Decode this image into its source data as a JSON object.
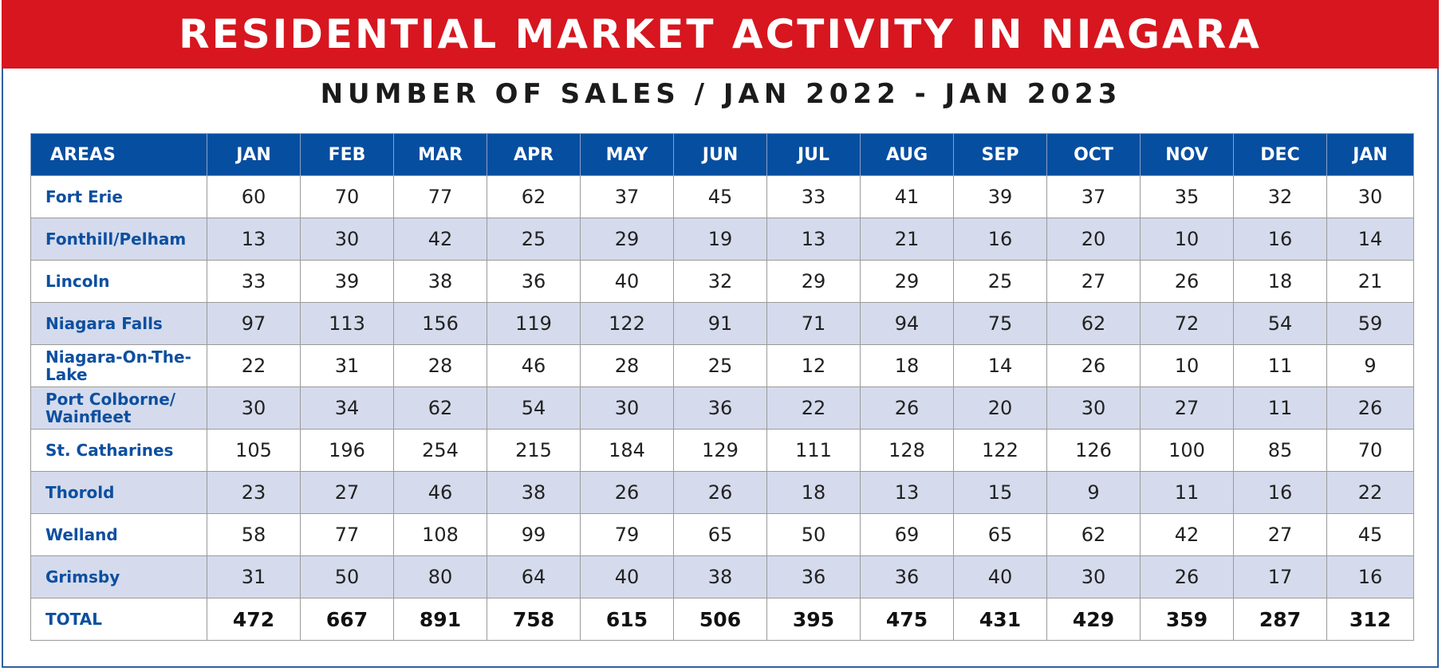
{
  "banner": {
    "title": "RESIDENTIAL MARKET ACTIVITY IN NIAGARA"
  },
  "subtitle": "NUMBER OF SALES / JAN 2022 - JAN 2023",
  "colors": {
    "banner_red": "#d7161f",
    "header_blue": "#064ea0",
    "area_text_blue": "#0d4fa0",
    "row_shade": "#d5dbec"
  },
  "table": {
    "area_header": "AREAS",
    "months": [
      "JAN",
      "FEB",
      "MAR",
      "APR",
      "MAY",
      "JUN",
      "JUL",
      "AUG",
      "SEP",
      "OCT",
      "NOV",
      "DEC",
      "JAN"
    ],
    "rows": [
      {
        "area": "Fort Erie",
        "values": [
          "60",
          "70",
          "77",
          "62",
          "37",
          "45",
          "33",
          "41",
          "39",
          "37",
          "35",
          "32",
          "30"
        ]
      },
      {
        "area": "Fonthill/Pelham",
        "values": [
          "13",
          "30",
          "42",
          "25",
          "29",
          "19",
          "13",
          "21",
          "16",
          "20",
          "10",
          "16",
          "14"
        ]
      },
      {
        "area": "Lincoln",
        "values": [
          "33",
          "39",
          "38",
          "36",
          "40",
          "32",
          "29",
          "29",
          "25",
          "27",
          "26",
          "18",
          "21"
        ]
      },
      {
        "area": "Niagara Falls",
        "values": [
          "97",
          "113",
          "156",
          "119",
          "122",
          "91",
          "71",
          "94",
          "75",
          "62",
          "72",
          "54",
          "59"
        ]
      },
      {
        "area": "Niagara-On-The-Lake",
        "values": [
          "22",
          "31",
          "28",
          "46",
          "28",
          "25",
          "12",
          "18",
          "14",
          "26",
          "10",
          "11",
          "9"
        ]
      },
      {
        "area": "Port Colborne/ Wainfleet",
        "values": [
          "30",
          "34",
          "62",
          "54",
          "30",
          "36",
          "22",
          "26",
          "20",
          "30",
          "27",
          "11",
          "26"
        ]
      },
      {
        "area": "St. Catharines",
        "values": [
          "105",
          "196",
          "254",
          "215",
          "184",
          "129",
          "111",
          "128",
          "122",
          "126",
          "100",
          "85",
          "70"
        ]
      },
      {
        "area": "Thorold",
        "values": [
          "23",
          "27",
          "46",
          "38",
          "26",
          "26",
          "18",
          "13",
          "15",
          "9",
          "11",
          "16",
          "22"
        ]
      },
      {
        "area": "Welland",
        "values": [
          "58",
          "77",
          "108",
          "99",
          "79",
          "65",
          "50",
          "69",
          "65",
          "62",
          "42",
          "27",
          "45"
        ]
      },
      {
        "area": "Grimsby",
        "values": [
          "31",
          "50",
          "80",
          "64",
          "40",
          "38",
          "36",
          "36",
          "40",
          "30",
          "26",
          "17",
          "16"
        ]
      }
    ],
    "total": {
      "area": "TOTAL",
      "values": [
        "472",
        "667",
        "891",
        "758",
        "615",
        "506",
        "395",
        "475",
        "431",
        "429",
        "359",
        "287",
        "312"
      ]
    }
  }
}
